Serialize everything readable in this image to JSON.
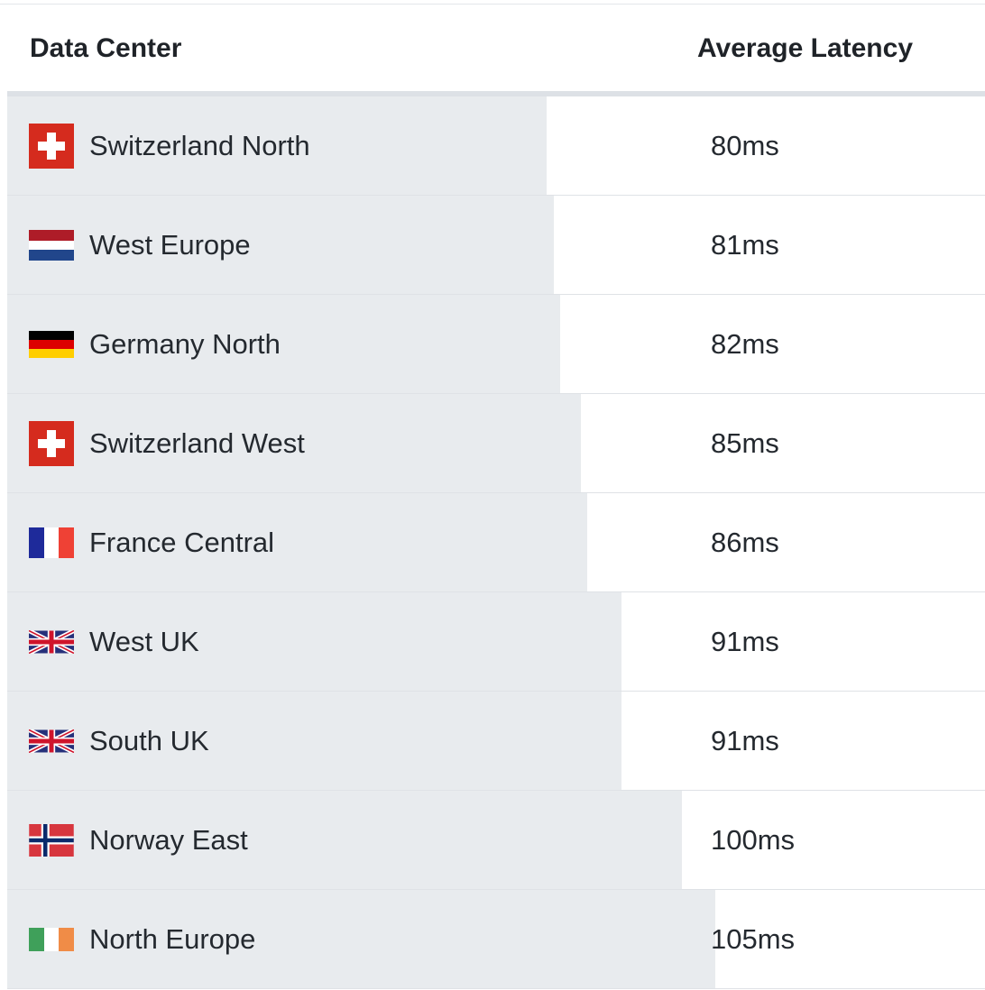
{
  "table": {
    "headers": {
      "data_center": "Data Center",
      "average_latency": "Average Latency"
    },
    "bar_color": "#e8ebee",
    "rows": [
      {
        "flag": "switzerland-flag-icon",
        "name": "Switzerland North",
        "latency": "80ms",
        "latency_value": 80
      },
      {
        "flag": "netherlands-flag-icon",
        "name": "West Europe",
        "latency": "81ms",
        "latency_value": 81
      },
      {
        "flag": "germany-flag-icon",
        "name": "Germany North",
        "latency": "82ms",
        "latency_value": 82
      },
      {
        "flag": "switzerland-flag-icon",
        "name": "Switzerland West",
        "latency": "85ms",
        "latency_value": 85
      },
      {
        "flag": "france-flag-icon",
        "name": "France Central",
        "latency": "86ms",
        "latency_value": 86
      },
      {
        "flag": "uk-flag-icon",
        "name": "West UK",
        "latency": "91ms",
        "latency_value": 91
      },
      {
        "flag": "uk-flag-icon",
        "name": "South UK",
        "latency": "91ms",
        "latency_value": 91
      },
      {
        "flag": "norway-flag-icon",
        "name": "Norway East",
        "latency": "100ms",
        "latency_value": 100
      },
      {
        "flag": "ireland-flag-icon",
        "name": "North Europe",
        "latency": "105ms",
        "latency_value": 105
      }
    ]
  }
}
